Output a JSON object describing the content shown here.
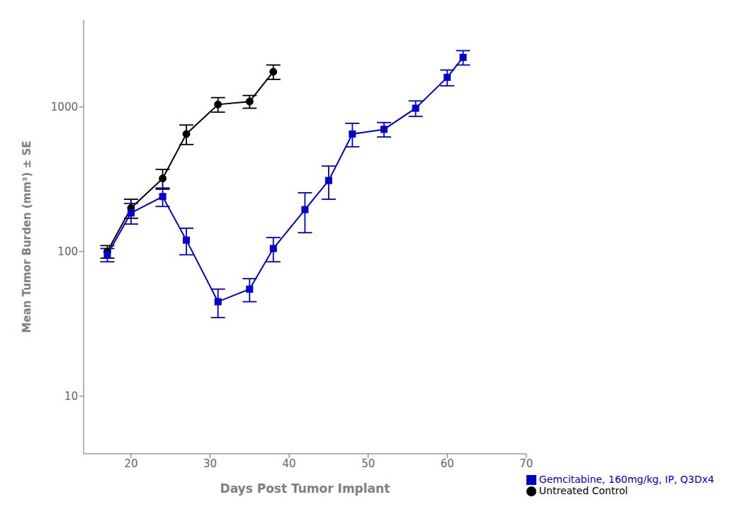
{
  "chart_data": {
    "type": "line",
    "xlabel": "Days Post Tumor Implant",
    "ylabel": "Mean Tumor Burden (mm³) ± SE",
    "xlim": [
      14,
      70
    ],
    "xticks": [
      20,
      30,
      40,
      50,
      60,
      70
    ],
    "ylim": [
      4,
      4000
    ],
    "yticks": [
      10,
      100,
      1000
    ],
    "log": "y",
    "grid": false,
    "legend": "lower right",
    "series": [
      {
        "name": "Untreated Control",
        "color": "#000000",
        "marker": "circle",
        "line_style": "solid",
        "x": [
          17,
          20,
          24,
          27,
          31,
          35,
          38
        ],
        "values": [
          100,
          200,
          320,
          650,
          1040,
          1090,
          1750
        ],
        "errors": [
          10,
          30,
          50,
          100,
          120,
          110,
          200
        ]
      },
      {
        "name": "Gemcitabine, 160mg/kg, IP, Q3Dx4",
        "color": "#0000cc",
        "marker": "square",
        "line_style": "solid",
        "x": [
          17,
          20,
          24,
          27,
          31,
          35,
          38,
          42,
          45,
          48,
          52,
          56,
          60,
          62
        ],
        "values": [
          95,
          185,
          240,
          120,
          45,
          55,
          105,
          195,
          310,
          650,
          700,
          980,
          1600,
          2200
        ],
        "errors": [
          10,
          30,
          35,
          25,
          10,
          10,
          20,
          60,
          80,
          120,
          80,
          120,
          200,
          250
        ]
      }
    ]
  }
}
